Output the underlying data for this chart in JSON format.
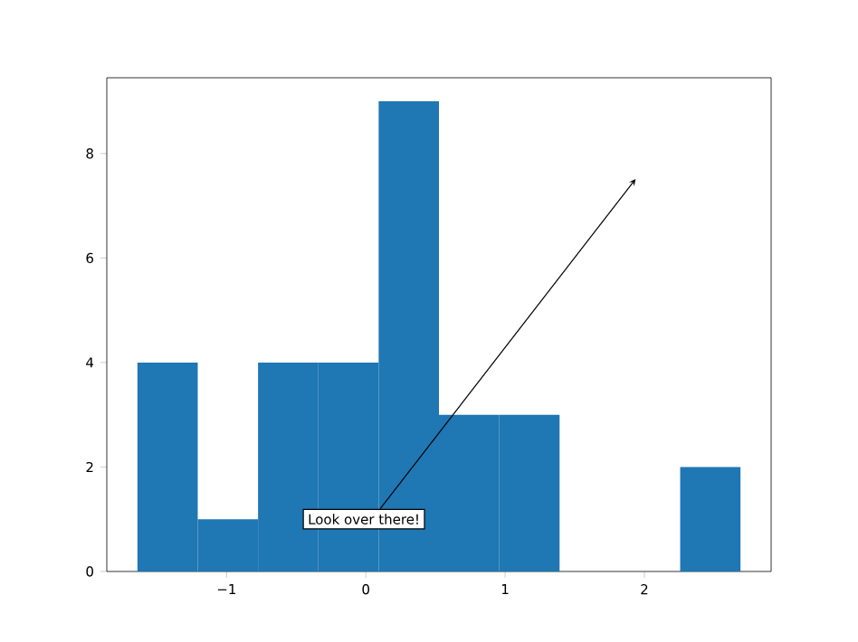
{
  "chart_data": {
    "type": "histogram",
    "color": "#1f77b4",
    "bins": [
      -1.64,
      -1.207,
      -0.774,
      -0.341,
      0.092,
      0.525,
      0.958,
      1.391,
      1.824,
      2.257,
      2.69
    ],
    "values": [
      4,
      1,
      4,
      4,
      9,
      3,
      3,
      0,
      0,
      2
    ],
    "xlim": [
      -1.86,
      2.91
    ],
    "ylim": [
      0,
      9.45
    ],
    "xticks": [
      {
        "value": -1,
        "label": "−1"
      },
      0,
      1,
      2
    ],
    "yticks": [
      0,
      2,
      4,
      6,
      8
    ],
    "annotations": [
      "Look over there!"
    ]
  }
}
